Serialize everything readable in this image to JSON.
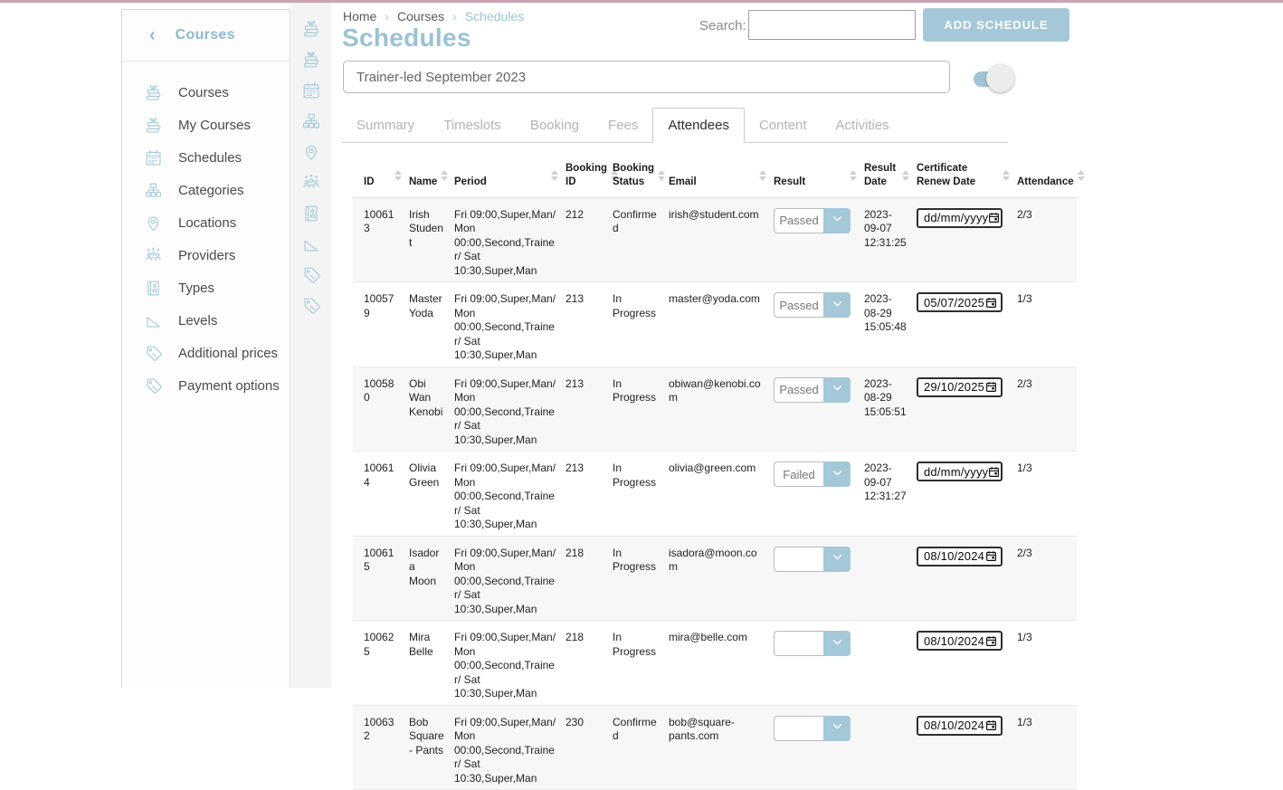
{
  "colors": {
    "accent_blue": "#a5c8d9",
    "title_blue": "#9bc2d4",
    "topbar_pink": "#c9a3b1",
    "row_stripe": "#f7f7f7"
  },
  "sidebar": {
    "back_icon": "‹",
    "title": "Courses",
    "items": [
      {
        "label": "Courses",
        "icon": "courses-icon"
      },
      {
        "label": "My Courses",
        "icon": "my-courses-icon"
      },
      {
        "label": "Schedules",
        "icon": "schedules-icon"
      },
      {
        "label": "Categories",
        "icon": "categories-icon"
      },
      {
        "label": "Locations",
        "icon": "locations-icon"
      },
      {
        "label": "Providers",
        "icon": "providers-icon"
      },
      {
        "label": "Types",
        "icon": "types-icon"
      },
      {
        "label": "Levels",
        "icon": "levels-icon"
      },
      {
        "label": "Additional prices",
        "icon": "additional-prices-icon"
      },
      {
        "label": "Payment options",
        "icon": "payment-options-icon"
      }
    ]
  },
  "icon_rail": {
    "icons": [
      "courses-icon",
      "my-courses-icon",
      "schedules-icon",
      "categories-icon",
      "locations-icon",
      "providers-icon",
      "types-icon",
      "levels-icon",
      "additional-prices-icon",
      "payment-options-icon"
    ]
  },
  "breadcrumb": {
    "separator": "›",
    "items": [
      {
        "label": "Home",
        "active": false
      },
      {
        "label": "Courses",
        "active": false
      },
      {
        "label": "Schedules",
        "active": true
      }
    ]
  },
  "page": {
    "title": "Schedules"
  },
  "search": {
    "label": "Search:",
    "value": ""
  },
  "add_button": {
    "label": "ADD SCHEDULE"
  },
  "schedule_name": {
    "value": "Trainer-led September 2023"
  },
  "toggle": {
    "state": "on"
  },
  "tabs": [
    {
      "label": "Summary",
      "active": false
    },
    {
      "label": "Timeslots",
      "active": false
    },
    {
      "label": "Booking",
      "active": false
    },
    {
      "label": "Fees",
      "active": false
    },
    {
      "label": "Attendees",
      "active": true
    },
    {
      "label": "Content",
      "active": false
    },
    {
      "label": "Activities",
      "active": false
    }
  ],
  "table": {
    "columns": [
      {
        "key": "id",
        "label": "ID"
      },
      {
        "key": "name",
        "label": "Name"
      },
      {
        "key": "period",
        "label": "Period"
      },
      {
        "key": "booking_id",
        "label": "Booking ID"
      },
      {
        "key": "booking_status",
        "label": "Booking Status"
      },
      {
        "key": "email",
        "label": "Email"
      },
      {
        "key": "result",
        "label": "Result"
      },
      {
        "key": "result_date",
        "label": "Result Date"
      },
      {
        "key": "certificate_renew_date",
        "label": "Certificate Renew Date"
      },
      {
        "key": "attendance",
        "label": "Attendance"
      }
    ],
    "rows": [
      {
        "id": "100613",
        "name": "Irish Student",
        "period": "Fri 09:00,Super,Man/ Mon 00:00,Second,Trainer/ Sat 10:30,Super,Man",
        "booking_id": "212",
        "booking_status": "Confirmed",
        "email": "irish@student.com",
        "result": "Passed",
        "result_date": "2023-09-07 12:31:25",
        "certificate_renew_date": "dd/mm/yyyy",
        "attendance": "2/3"
      },
      {
        "id": "100579",
        "name": "Master Yoda",
        "period": "Fri 09:00,Super,Man/ Mon 00:00,Second,Trainer/ Sat 10:30,Super,Man",
        "booking_id": "213",
        "booking_status": "In Progress",
        "email": "master@yoda.com",
        "result": "Passed",
        "result_date": "2023-08-29 15:05:48",
        "certificate_renew_date": "05/07/2025",
        "attendance": "1/3"
      },
      {
        "id": "100580",
        "name": "Obi Wan Kenobi",
        "period": "Fri 09:00,Super,Man/ Mon 00:00,Second,Trainer/ Sat 10:30,Super,Man",
        "booking_id": "213",
        "booking_status": "In Progress",
        "email": "obiwan@kenobi.com",
        "result": "Passed",
        "result_date": "2023-08-29 15:05:51",
        "certificate_renew_date": "29/10/2025",
        "attendance": "2/3"
      },
      {
        "id": "100614",
        "name": "Olivia Green",
        "period": "Fri 09:00,Super,Man/ Mon 00:00,Second,Trainer/ Sat 10:30,Super,Man",
        "booking_id": "213",
        "booking_status": "In Progress",
        "email": "olivia@green.com",
        "result": "Failed",
        "result_date": "2023-09-07 12:31:27",
        "certificate_renew_date": "dd/mm/yyyy",
        "attendance": "1/3"
      },
      {
        "id": "100615",
        "name": "Isadora Moon",
        "period": "Fri 09:00,Super,Man/ Mon 00:00,Second,Trainer/ Sat 10:30,Super,Man",
        "booking_id": "218",
        "booking_status": "In Progress",
        "email": "isadora@moon.com",
        "result": "",
        "result_date": "",
        "certificate_renew_date": "08/10/2024",
        "attendance": "2/3"
      },
      {
        "id": "100625",
        "name": "Mira Belle",
        "period": "Fri 09:00,Super,Man/ Mon 00:00,Second,Trainer/ Sat 10:30,Super,Man",
        "booking_id": "218",
        "booking_status": "In Progress",
        "email": "mira@belle.com",
        "result": "",
        "result_date": "",
        "certificate_renew_date": "08/10/2024",
        "attendance": "1/3"
      },
      {
        "id": "100632",
        "name": "Bob Square - Pants",
        "period": "Fri 09:00,Super,Man/ Mon 00:00,Second,Trainer/ Sat 10:30,Super,Man",
        "booking_id": "230",
        "booking_status": "Confirmed",
        "email": "bob@square-pants.com",
        "result": "",
        "result_date": "",
        "certificate_renew_date": "08/10/2024",
        "attendance": "1/3"
      }
    ]
  }
}
